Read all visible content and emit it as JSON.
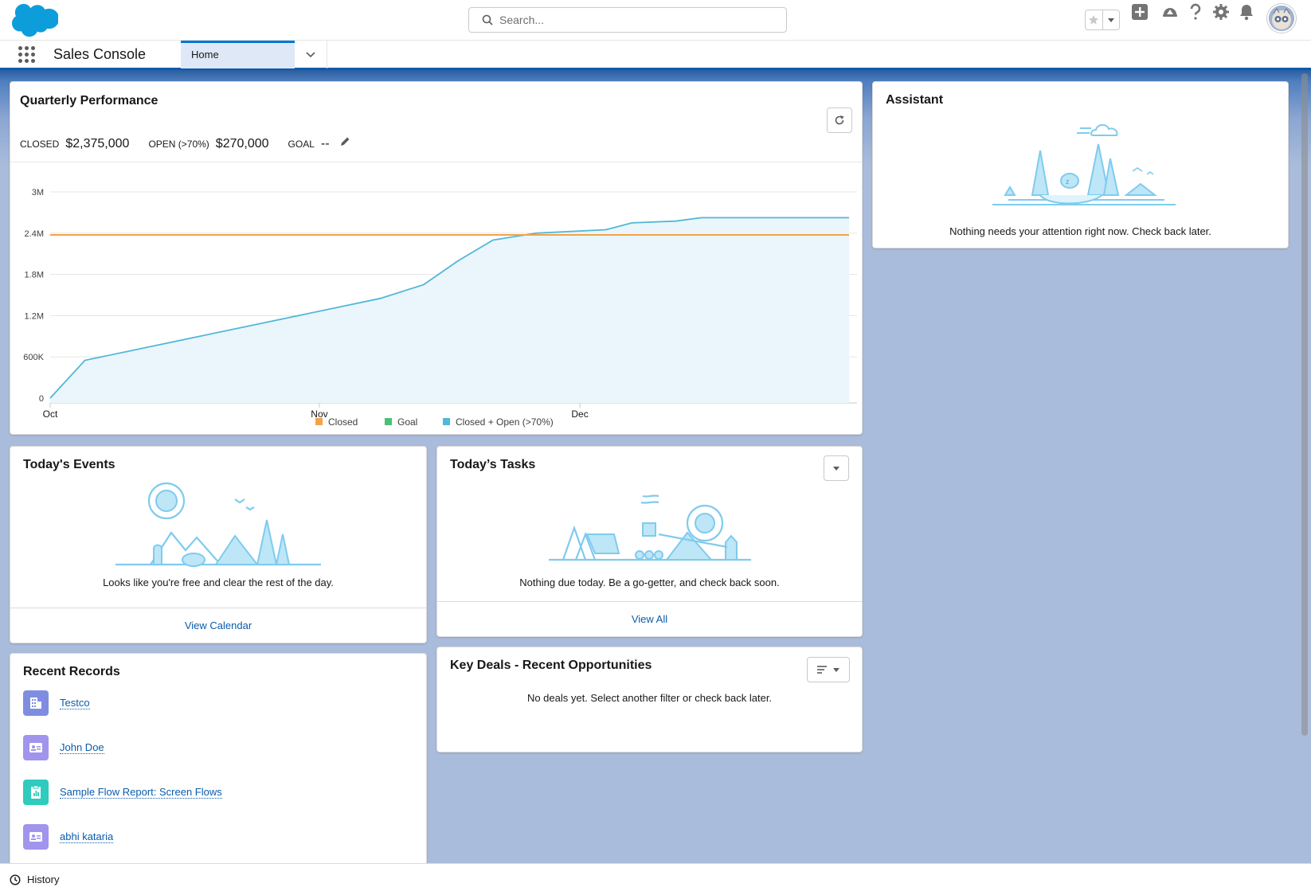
{
  "search": {
    "placeholder": "Search..."
  },
  "app": {
    "name": "Sales Console"
  },
  "tabs": [
    {
      "label": "Home"
    }
  ],
  "quarterly": {
    "title": "Quarterly Performance",
    "closed_label": "CLOSED",
    "closed_value": "$2,375,000",
    "open_label": "OPEN (>70%)",
    "open_value": "$270,000",
    "goal_label": "GOAL",
    "goal_value": "--"
  },
  "chart_data": {
    "type": "line",
    "title": "",
    "xlabel": "",
    "ylabel": "",
    "x_ticks": [
      "Oct",
      "Nov",
      "Dec"
    ],
    "y_ticks": [
      "0",
      "600K",
      "1.2M",
      "1.8M",
      "2.4M",
      "3M"
    ],
    "ylim": [
      0,
      3000000
    ],
    "legend": [
      "Closed",
      "Goal",
      "Closed + Open (>70%)"
    ],
    "legend_position": "bottom",
    "colors": {
      "closed": "#f4a24a",
      "goal": "#4bc076",
      "closed_open": "#52b7d8"
    },
    "series": [
      {
        "name": "Closed",
        "x_days": [
          0,
          92
        ],
        "values": [
          2375000,
          2375000
        ]
      },
      {
        "name": "Closed + Open (>70%)",
        "x_days": [
          0,
          4,
          38,
          43,
          47,
          51,
          56,
          64,
          67,
          72,
          75,
          90,
          92
        ],
        "values": [
          0,
          550000,
          1450000,
          1650000,
          2000000,
          2300000,
          2400000,
          2450000,
          2550000,
          2575000,
          2625000,
          2625000,
          2625000
        ]
      }
    ],
    "grid": true
  },
  "events": {
    "title": "Today's Events",
    "empty": "Looks like you're free and clear the rest of the day.",
    "link": "View Calendar"
  },
  "tasks": {
    "title": "Today’s Tasks",
    "empty": "Nothing due today. Be a go-getter, and check back soon.",
    "link": "View All"
  },
  "deals": {
    "title": "Key Deals - Recent Opportunities",
    "empty": "No deals yet. Select another filter or check back later."
  },
  "recent": {
    "title": "Recent Records",
    "items": [
      {
        "label": "Testco",
        "icon": "account-icon",
        "color": "#7f8de1"
      },
      {
        "label": "John Doe",
        "icon": "contact-icon",
        "color": "#a094ed"
      },
      {
        "label": "Sample Flow Report: Screen Flows",
        "icon": "report-icon",
        "color": "#2ecbbe"
      },
      {
        "label": "abhi kataria",
        "icon": "contact-icon",
        "color": "#a094ed"
      }
    ]
  },
  "assistant": {
    "title": "Assistant",
    "empty": "Nothing needs your attention right now. Check back later."
  },
  "utility": {
    "history": "History"
  }
}
